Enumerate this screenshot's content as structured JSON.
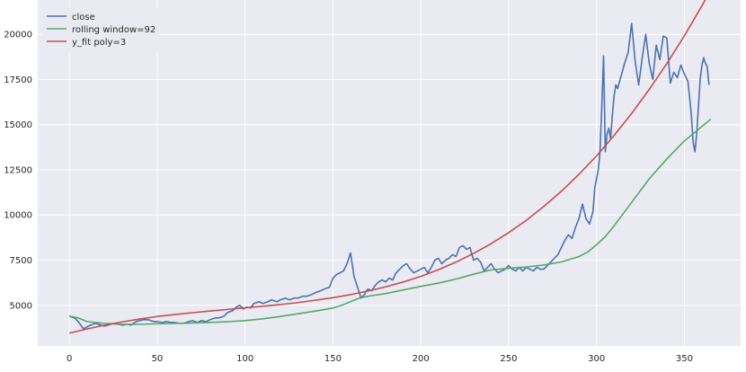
{
  "chart_data": {
    "type": "line",
    "x_ticks": [
      0,
      50,
      100,
      150,
      200,
      250,
      300,
      350
    ],
    "y_ticks": [
      5000,
      7500,
      10000,
      12500,
      15000,
      17500,
      20000
    ],
    "xlim": [
      -18,
      382
    ],
    "ylim": [
      2750,
      21900
    ],
    "grid": true,
    "legend_position": "top-left",
    "series": [
      {
        "name": "close",
        "color": "#4c72b0",
        "x": [
          0,
          3,
          5,
          8,
          10,
          12,
          15,
          18,
          20,
          22,
          25,
          28,
          30,
          33,
          35,
          38,
          40,
          42,
          45,
          48,
          50,
          53,
          55,
          58,
          60,
          63,
          65,
          68,
          70,
          73,
          75,
          78,
          80,
          83,
          85,
          88,
          90,
          93,
          95,
          97,
          99,
          101,
          103,
          105,
          108,
          110,
          113,
          115,
          118,
          120,
          123,
          125,
          128,
          130,
          133,
          135,
          138,
          140,
          143,
          145,
          148,
          150,
          152,
          154,
          156,
          158,
          160,
          162,
          164,
          165,
          166,
          168,
          169,
          170,
          172,
          174,
          176,
          178,
          180,
          182,
          184,
          186,
          188,
          190,
          192,
          194,
          196,
          198,
          200,
          202,
          204,
          206,
          208,
          210,
          212,
          214,
          216,
          218,
          220,
          222,
          224,
          226,
          228,
          230,
          232,
          234,
          236,
          238,
          240,
          242,
          244,
          246,
          248,
          250,
          252,
          254,
          256,
          258,
          260,
          262,
          264,
          266,
          268,
          270,
          272,
          274,
          276,
          278,
          280,
          282,
          284,
          286,
          288,
          290,
          292,
          294,
          296,
          298,
          299,
          300,
          301,
          302,
          303,
          304,
          305,
          306,
          307,
          308,
          309,
          310,
          311,
          312,
          314,
          316,
          318,
          320,
          322,
          324,
          326,
          328,
          330,
          332,
          334,
          336,
          338,
          340,
          342,
          344,
          346,
          348,
          350,
          351,
          352,
          353,
          354,
          355,
          356,
          357,
          358,
          359,
          360,
          361,
          362,
          363,
          364
        ],
        "values": [
          4400,
          4300,
          4100,
          3700,
          3800,
          3900,
          4000,
          3900,
          3850,
          3900,
          4000,
          3950,
          3900,
          3950,
          3900,
          4100,
          4150,
          4200,
          4200,
          4100,
          4100,
          4050,
          4100,
          4050,
          4050,
          4000,
          4000,
          4100,
          4150,
          4050,
          4150,
          4100,
          4200,
          4300,
          4300,
          4400,
          4600,
          4700,
          4900,
          5000,
          4800,
          4900,
          4850,
          5100,
          5200,
          5100,
          5200,
          5300,
          5200,
          5300,
          5400,
          5300,
          5400,
          5400,
          5500,
          5500,
          5600,
          5700,
          5800,
          5900,
          6000,
          6500,
          6700,
          6800,
          6900,
          7300,
          7900,
          6600,
          6000,
          5700,
          5400,
          5600,
          5800,
          5900,
          5800,
          6100,
          6300,
          6400,
          6300,
          6500,
          6400,
          6800,
          7000,
          7200,
          7300,
          7000,
          6800,
          6900,
          7000,
          7100,
          6800,
          7100,
          7500,
          7600,
          7300,
          7500,
          7600,
          7800,
          7700,
          8200,
          8300,
          8100,
          8200,
          7500,
          7600,
          7400,
          6900,
          7100,
          7300,
          7000,
          6800,
          6900,
          7000,
          7200,
          7000,
          6900,
          7100,
          6900,
          7100,
          7000,
          6900,
          7100,
          7000,
          7000,
          7200,
          7400,
          7600,
          7800,
          8200,
          8600,
          8900,
          8700,
          9300,
          9800,
          10600,
          9800,
          9500,
          10200,
          11500,
          12000,
          12500,
          13500,
          16000,
          18800,
          13500,
          14500,
          14800,
          14200,
          15500,
          16600,
          17200,
          17000,
          17700,
          18400,
          19000,
          20600,
          18500,
          17200,
          18700,
          20000,
          18400,
          17500,
          19400,
          18600,
          19900,
          19800,
          17300,
          17900,
          17600,
          18300,
          17800,
          17600,
          17400,
          16500,
          15500,
          14000,
          13500,
          14500,
          16000,
          17500,
          18300,
          18700,
          18400,
          18200,
          17200
        ]
      },
      {
        "name": "rolling window=92",
        "color": "#55a868",
        "x": [
          0,
          5,
          10,
          15,
          20,
          30,
          40,
          50,
          60,
          70,
          80,
          90,
          100,
          110,
          120,
          130,
          140,
          150,
          155,
          160,
          165,
          170,
          180,
          190,
          200,
          210,
          220,
          230,
          240,
          250,
          260,
          270,
          280,
          290,
          295,
          300,
          305,
          310,
          320,
          330,
          340,
          350,
          360,
          365
        ],
        "values": [
          4400,
          4300,
          4100,
          4050,
          4000,
          3950,
          3950,
          3980,
          4000,
          4020,
          4050,
          4090,
          4150,
          4250,
          4380,
          4530,
          4680,
          4850,
          5000,
          5200,
          5400,
          5500,
          5650,
          5850,
          6050,
          6230,
          6450,
          6720,
          6960,
          7050,
          7120,
          7230,
          7400,
          7700,
          7950,
          8350,
          8800,
          9400,
          10700,
          12000,
          13100,
          14100,
          14900,
          15300
        ]
      },
      {
        "name": "y_fit poly=3",
        "color": "#c44e52",
        "x": [
          0,
          10,
          20,
          30,
          40,
          50,
          60,
          70,
          80,
          90,
          100,
          110,
          120,
          130,
          140,
          150,
          160,
          170,
          180,
          190,
          200,
          210,
          220,
          230,
          240,
          250,
          260,
          270,
          280,
          290,
          300,
          310,
          320,
          330,
          340,
          350,
          360,
          365
        ],
        "values": [
          3460,
          3690,
          3900,
          4080,
          4240,
          4380,
          4490,
          4590,
          4680,
          4770,
          4860,
          4950,
          5040,
          5150,
          5280,
          5420,
          5590,
          5790,
          6020,
          6290,
          6600,
          6970,
          7390,
          7870,
          8410,
          9020,
          9700,
          10470,
          11310,
          12250,
          13270,
          14400,
          15620,
          16950,
          18380,
          19920,
          21580,
          22450
        ]
      }
    ]
  }
}
